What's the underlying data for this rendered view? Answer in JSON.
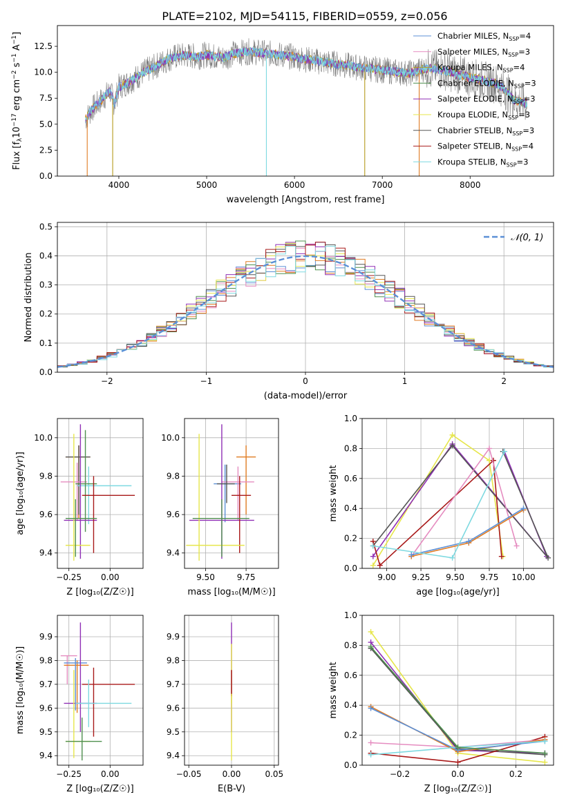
{
  "figure": {
    "title": "PLATE=2102, MJD=54115, FIBERID=0559, z=0.056"
  },
  "colors": {
    "Chabrier MILES": "#5b8fd6",
    "Salpeter MILES": "#e58cc0",
    "Kroupa MILES": "#b59a1d",
    "Chabrier ELODIE": "#4e8f4e",
    "Salpeter ELODIE": "#8f2fb5",
    "Kroupa ELODIE": "#e6e64a",
    "Chabrier STELIB": "#555555",
    "Salpeter STELIB": "#a81818",
    "Kroupa STELIB": "#7dd9e0",
    "extra_orange": "#e07b22",
    "extra_lime": "#c8e65a"
  },
  "chart_data": [
    {
      "id": "spectrum",
      "type": "line",
      "xlabel": "wavelength [Angstrom, rest frame]",
      "ylabel": "Flux [f_λ 10^-17 erg cm^-2 s^-1 A^-1]",
      "xlim": [
        3300,
        8950
      ],
      "ylim": [
        0,
        14.5
      ],
      "xticks": [
        4000,
        5000,
        6000,
        7000,
        8000
      ],
      "yticks": [
        0.0,
        2.5,
        5.0,
        7.5,
        10.0,
        12.5
      ],
      "grid": false,
      "legend_position": "top-right",
      "legend": [
        {
          "name": "Chabrier MILES, N",
          "sub": "SSP",
          "suffix": "=4",
          "color_key": "Chabrier MILES"
        },
        {
          "name": "Salpeter MILES, N",
          "sub": "SSP",
          "suffix": "=3",
          "color_key": "Salpeter MILES"
        },
        {
          "name": "Kroupa MILES, N",
          "sub": "SSP",
          "suffix": "=4",
          "color_key": "Kroupa MILES"
        },
        {
          "name": "Chabrier ELODIE, N",
          "sub": "SSP",
          "suffix": "=3",
          "color_key": "Chabrier ELODIE"
        },
        {
          "name": "Salpeter ELODIE, N",
          "sub": "SSP",
          "suffix": "=3",
          "color_key": "Salpeter ELODIE"
        },
        {
          "name": "Kroupa ELODIE, N",
          "sub": "SSP",
          "suffix": "=3",
          "color_key": "Kroupa ELODIE"
        },
        {
          "name": "Chabrier STELIB, N",
          "sub": "SSP",
          "suffix": "=3",
          "color_key": "Chabrier STELIB"
        },
        {
          "name": "Salpeter STELIB, N",
          "sub": "SSP",
          "suffix": "=4",
          "color_key": "Salpeter STELIB"
        },
        {
          "name": "Kroupa STELIB, N",
          "sub": "SSP",
          "suffix": "=3",
          "color_key": "Kroupa STELIB"
        }
      ],
      "continuum_points": [
        [
          3620,
          5.5
        ],
        [
          3700,
          6.5
        ],
        [
          3800,
          7.3
        ],
        [
          3900,
          8.2
        ],
        [
          3950,
          7.0
        ],
        [
          4000,
          8.6
        ],
        [
          4100,
          9.0
        ],
        [
          4200,
          9.5
        ],
        [
          4300,
          10.1
        ],
        [
          4400,
          10.5
        ],
        [
          4500,
          11.0
        ],
        [
          4600,
          11.4
        ],
        [
          4700,
          11.6
        ],
        [
          4800,
          11.6
        ],
        [
          4900,
          11.5
        ],
        [
          5000,
          11.7
        ],
        [
          5100,
          11.5
        ],
        [
          5200,
          11.4
        ],
        [
          5300,
          11.8
        ],
        [
          5500,
          12.0
        ],
        [
          5700,
          11.8
        ],
        [
          5900,
          11.6
        ],
        [
          6100,
          11.3
        ],
        [
          6300,
          11.0
        ],
        [
          6500,
          10.8
        ],
        [
          6700,
          10.5
        ],
        [
          6900,
          10.3
        ],
        [
          7100,
          10.1
        ],
        [
          7300,
          9.9
        ],
        [
          7500,
          10.4
        ],
        [
          7700,
          10.2
        ],
        [
          7900,
          9.7
        ],
        [
          8100,
          9.3
        ],
        [
          8300,
          8.9
        ],
        [
          8400,
          8.3
        ],
        [
          8500,
          7.3
        ],
        [
          8650,
          7.0
        ]
      ],
      "drops": [
        {
          "x": 3640,
          "to": 0,
          "color_key": "extra_orange"
        },
        {
          "x": 3930,
          "to": 0,
          "color_key": "Kroupa MILES"
        },
        {
          "x": 5680,
          "to": 0,
          "color_key": "Kroupa STELIB"
        },
        {
          "x": 6800,
          "to": 0,
          "color_key": "Kroupa MILES"
        },
        {
          "x": 7420,
          "to": 0,
          "color_key": "extra_orange"
        }
      ]
    },
    {
      "id": "residuals",
      "type": "histogram",
      "xlabel": "(data-model)/error",
      "ylabel": "Normed distribution",
      "xlim": [
        -2.5,
        2.5
      ],
      "ylim": [
        0,
        0.515
      ],
      "xticks": [
        -2,
        -1,
        0,
        1,
        2
      ],
      "xtick_labels": [
        "−2",
        "−1",
        "0",
        "1",
        "2"
      ],
      "yticks": [
        0.0,
        0.1,
        0.2,
        0.3,
        0.4,
        0.5
      ],
      "grid": true,
      "legend_position": "top-right",
      "legend_label": "𝒩(0, 1)",
      "bin_width": 0.1,
      "series_color_keys": [
        "Chabrier MILES",
        "Salpeter MILES",
        "extra_orange",
        "Chabrier ELODIE",
        "Salpeter ELODIE",
        "Kroupa ELODIE",
        "Chabrier STELIB",
        "Salpeter STELIB",
        "Kroupa STELIB"
      ]
    },
    {
      "id": "age_vs_Z",
      "type": "errorbar",
      "xlabel": "Z [log₁₀(Z/Z☉)]",
      "ylabel": "age  [log₁₀(age/yr)]",
      "xlim": [
        -0.32,
        0.2
      ],
      "ylim": [
        9.32,
        10.1
      ],
      "xticks": [
        -0.25,
        0.0
      ],
      "xtick_labels": [
        "−0.25",
        "0.00"
      ],
      "yticks": [
        9.4,
        9.6,
        9.8,
        10.0
      ],
      "grid": true,
      "points": [
        {
          "x": -0.19,
          "xerr": [
            0.08,
            0.07
          ],
          "y": 9.9,
          "yerr": [
            0.32,
            0.06
          ],
          "color_key": "extra_orange"
        },
        {
          "x": -0.19,
          "xerr": [
            0.08,
            0.07
          ],
          "y": 9.9,
          "yerr": [
            0.3,
            0.06
          ],
          "color_key": "Chabrier STELIB"
        },
        {
          "x": -0.2,
          "xerr": [
            0.1,
            0.06
          ],
          "y": 9.77,
          "yerr": [
            0.2,
            0.1
          ],
          "color_key": "Salpeter MILES"
        },
        {
          "x": -0.13,
          "xerr": [
            0.07,
            0.26
          ],
          "y": 9.75,
          "yerr": [
            0.2,
            0.1
          ],
          "color_key": "Kroupa STELIB"
        },
        {
          "x": -0.15,
          "xerr": [
            0.06,
            0.07
          ],
          "y": 9.76,
          "yerr": [
            0.25,
            0.28
          ],
          "color_key": "Chabrier ELODIE"
        },
        {
          "x": -0.18,
          "xerr": [
            0.1,
            0.1
          ],
          "y": 9.57,
          "yerr": [
            0.2,
            0.5
          ],
          "color_key": "Salpeter ELODIE"
        },
        {
          "x": -0.1,
          "xerr": [
            0.07,
            0.25
          ],
          "y": 9.7,
          "yerr": [
            0.3,
            0.1
          ],
          "color_key": "Salpeter STELIB"
        },
        {
          "x": -0.22,
          "xerr": [
            0.05,
            0.1
          ],
          "y": 9.44,
          "yerr": [
            0.08,
            0.58
          ],
          "color_key": "Kroupa ELODIE"
        },
        {
          "x": -0.21,
          "xerr": [
            0.06,
            0.13
          ],
          "y": 9.58,
          "yerr": [
            0.2,
            0.1
          ],
          "color_key": "Chabrier ELODIE"
        }
      ]
    },
    {
      "id": "age_vs_mass",
      "type": "errorbar",
      "xlabel": "mass [log₁₀(M/M☉)]",
      "ylabel": "",
      "xlim": [
        9.37,
        9.95
      ],
      "ylim": [
        9.32,
        10.1
      ],
      "xticks": [
        9.5,
        9.75
      ],
      "xtick_labels": [
        "9.50",
        "9.75"
      ],
      "yticks": [
        9.4,
        9.6,
        9.8,
        10.0
      ],
      "grid": true,
      "points": [
        {
          "x": 9.75,
          "xerr": [
            0.06,
            0.06
          ],
          "y": 9.9,
          "yerr": [
            0.3,
            0.06
          ],
          "color_key": "extra_orange"
        },
        {
          "x": 9.62,
          "xerr": [
            0.07,
            0.1
          ],
          "y": 9.76,
          "yerr": [
            0.2,
            0.1
          ],
          "color_key": "Chabrier MILES"
        },
        {
          "x": 9.7,
          "xerr": [
            0.1,
            0.1
          ],
          "y": 9.77,
          "yerr": [
            0.2,
            0.08
          ],
          "color_key": "Salpeter MILES"
        },
        {
          "x": 9.6,
          "xerr": [
            0.2,
            0.2
          ],
          "y": 9.57,
          "yerr": [
            0.2,
            0.5
          ],
          "color_key": "Salpeter ELODIE"
        },
        {
          "x": 9.71,
          "xerr": [
            0.05,
            0.07
          ],
          "y": 9.7,
          "yerr": [
            0.3,
            0.1
          ],
          "color_key": "Salpeter STELIB"
        },
        {
          "x": 9.46,
          "xerr": [
            0.08,
            0.28
          ],
          "y": 9.44,
          "yerr": [
            0.08,
            0.58
          ],
          "color_key": "Kroupa ELODIE"
        },
        {
          "x": 9.6,
          "xerr": [
            0.18,
            0.17
          ],
          "y": 9.58,
          "yerr": [
            0.2,
            0.1
          ],
          "color_key": "Chabrier ELODIE"
        },
        {
          "x": 9.63,
          "xerr": [
            0.06,
            0.05
          ],
          "y": 9.76,
          "yerr": [
            0.1,
            0.1
          ],
          "color_key": "Chabrier STELIB"
        }
      ]
    },
    {
      "id": "weight_vs_age",
      "type": "line",
      "xlabel": "age  [log₁₀(age/yr)]",
      "ylabel": "mass weight",
      "xlim": [
        8.82,
        10.22
      ],
      "ylim": [
        0,
        1
      ],
      "xticks": [
        9.0,
        9.25,
        9.5,
        9.75,
        10.0
      ],
      "xtick_labels": [
        "9.00",
        "9.25",
        "9.50",
        "9.75",
        "10.00"
      ],
      "yticks": [
        0.0,
        0.2,
        0.4,
        0.6,
        0.8,
        1.0
      ],
      "grid": true,
      "series": [
        {
          "color_key": "Kroupa ELODIE",
          "x": [
            8.9,
            9.48,
            9.75,
            9.85
          ],
          "y": [
            0.02,
            0.89,
            0.72,
            0.08
          ]
        },
        {
          "color_key": "Salpeter ELODIE",
          "x": [
            8.9,
            9.48,
            10.17,
            9.86
          ],
          "y": [
            0.08,
            0.83,
            0.08,
            0.78
          ]
        },
        {
          "color_key": "Chabrier STELIB",
          "x": [
            8.9,
            9.48,
            10.18,
            9.85
          ],
          "y": [
            0.15,
            0.82,
            0.07,
            0.78
          ]
        },
        {
          "color_key": "Salpeter STELIB",
          "x": [
            8.9,
            8.95,
            9.78,
            9.84
          ],
          "y": [
            0.18,
            0.02,
            0.72,
            0.08
          ]
        },
        {
          "color_key": "Salpeter MILES",
          "x": [
            9.18,
            9.75,
            9.95
          ],
          "y": [
            0.08,
            0.8,
            0.15
          ]
        },
        {
          "color_key": "extra_orange",
          "x": [
            9.18,
            9.6,
            10.0
          ],
          "y": [
            0.08,
            0.17,
            0.39
          ]
        },
        {
          "color_key": "Chabrier MILES",
          "x": [
            9.18,
            9.6,
            10.0
          ],
          "y": [
            0.09,
            0.18,
            0.4
          ]
        },
        {
          "color_key": "Kroupa STELIB",
          "x": [
            8.9,
            9.48,
            9.86
          ],
          "y": [
            0.15,
            0.07,
            0.78
          ]
        }
      ]
    },
    {
      "id": "mass_vs_Z",
      "type": "errorbar",
      "xlabel": "Z [log₁₀(Z/Z☉)]",
      "ylabel": "mass [log₁₀(M/M☉)]",
      "xlim": [
        -0.32,
        0.2
      ],
      "ylim": [
        9.36,
        9.99
      ],
      "xticks": [
        -0.25,
        0.0
      ],
      "xtick_labels": [
        "−0.25",
        "0.00"
      ],
      "yticks": [
        9.4,
        9.5,
        9.6,
        9.7,
        9.8,
        9.9
      ],
      "grid": true,
      "points": [
        {
          "x": -0.26,
          "xerr": [
            0.04,
            0.06
          ],
          "y": 9.82,
          "yerr": [
            0.12,
            0.0
          ],
          "color_key": "Salpeter MILES"
        },
        {
          "x": -0.2,
          "xerr": [
            0.08,
            0.07
          ],
          "y": 9.78,
          "yerr": [
            0.2,
            0.02
          ],
          "color_key": "extra_orange"
        },
        {
          "x": -0.21,
          "xerr": [
            0.07,
            0.07
          ],
          "y": 9.79,
          "yerr": [
            0.2,
            0.02
          ],
          "color_key": "Chabrier MILES"
        },
        {
          "x": -0.18,
          "xerr": [
            0.1,
            0.1
          ],
          "y": 9.62,
          "yerr": [
            0.12,
            0.34
          ],
          "color_key": "Salpeter ELODIE"
        },
        {
          "x": -0.1,
          "xerr": [
            0.07,
            0.25
          ],
          "y": 9.7,
          "yerr": [
            0.22,
            0.07
          ],
          "color_key": "Salpeter STELIB"
        },
        {
          "x": -0.13,
          "xerr": [
            0.08,
            0.26
          ],
          "y": 9.62,
          "yerr": [
            0.1,
            0.1
          ],
          "color_key": "Kroupa STELIB"
        },
        {
          "x": -0.22,
          "xerr": [
            0.05,
            0.1
          ],
          "y": 9.46,
          "yerr": [
            0.07,
            0.3
          ],
          "color_key": "Kroupa ELODIE"
        },
        {
          "x": -0.17,
          "xerr": [
            0.1,
            0.12
          ],
          "y": 9.46,
          "yerr": [
            0.08,
            0.1
          ],
          "color_key": "Chabrier ELODIE"
        }
      ]
    },
    {
      "id": "mass_vs_EBV",
      "type": "errorbar",
      "xlabel": "E(B-V)",
      "ylabel": "",
      "xlim": [
        -0.055,
        0.055
      ],
      "ylim": [
        9.36,
        9.99
      ],
      "xticks": [
        -0.05,
        0.0,
        0.05
      ],
      "xtick_labels": [
        "−0.05",
        "0.00",
        "0.05"
      ],
      "yticks": [
        9.4,
        9.5,
        9.6,
        9.7,
        9.8,
        9.9
      ],
      "grid": true,
      "points": [
        {
          "x": 0.0,
          "xerr": [
            0,
            0
          ],
          "y": 9.62,
          "yerr": [
            0.12,
            0.34
          ],
          "color_key": "Salpeter ELODIE"
        },
        {
          "x": 0.0,
          "xerr": [
            0,
            0
          ],
          "y": 9.72,
          "yerr": [
            0.1,
            0.15
          ],
          "color_key": "Kroupa ELODIE"
        },
        {
          "x": 0.0,
          "xerr": [
            0,
            0
          ],
          "y": 9.7,
          "yerr": [
            0.05,
            0.06
          ],
          "color_key": "Salpeter STELIB"
        },
        {
          "x": 0.0,
          "xerr": [
            0,
            0
          ],
          "y": 9.46,
          "yerr": [
            0.08,
            0.2
          ],
          "color_key": "Kroupa ELODIE"
        }
      ]
    },
    {
      "id": "weight_vs_Z",
      "type": "line",
      "xlabel": "Z [log₁₀(Z/Z☉)]",
      "ylabel": "mass weight",
      "xlim": [
        -0.33,
        0.33
      ],
      "ylim": [
        0,
        1
      ],
      "xticks": [
        -0.2,
        0.0,
        0.2
      ],
      "xtick_labels": [
        "−0.2",
        "0.0",
        "0.2"
      ],
      "yticks": [
        0.0,
        0.2,
        0.4,
        0.6,
        0.8,
        1.0
      ],
      "grid": true,
      "series": [
        {
          "color_key": "Kroupa ELODIE",
          "x": [
            -0.3,
            0.0,
            0.3
          ],
          "y": [
            0.89,
            0.08,
            0.02
          ]
        },
        {
          "color_key": "Salpeter ELODIE",
          "x": [
            -0.3,
            0.0,
            0.3
          ],
          "y": [
            0.82,
            0.1,
            0.08
          ]
        },
        {
          "color_key": "Chabrier STELIB",
          "x": [
            -0.3,
            0.0,
            0.3
          ],
          "y": [
            0.78,
            0.11,
            0.07
          ]
        },
        {
          "color_key": "Salpeter STELIB",
          "x": [
            -0.3,
            0.0,
            0.3
          ],
          "y": [
            0.08,
            0.02,
            0.19
          ]
        },
        {
          "color_key": "Salpeter MILES",
          "x": [
            -0.3,
            0.0,
            0.3
          ],
          "y": [
            0.15,
            0.12,
            0.17
          ]
        },
        {
          "color_key": "extra_orange",
          "x": [
            -0.3,
            0.0,
            0.3
          ],
          "y": [
            0.39,
            0.09,
            0.17
          ]
        },
        {
          "color_key": "Chabrier MILES",
          "x": [
            -0.3,
            0.0,
            0.3
          ],
          "y": [
            0.38,
            0.1,
            0.16
          ]
        },
        {
          "color_key": "Kroupa STELIB",
          "x": [
            -0.3,
            0.0,
            0.3
          ],
          "y": [
            0.07,
            0.12,
            0.16
          ]
        },
        {
          "color_key": "Chabrier ELODIE",
          "x": [
            -0.3,
            0.0,
            0.3
          ],
          "y": [
            0.79,
            0.12,
            0.08
          ]
        }
      ]
    }
  ]
}
